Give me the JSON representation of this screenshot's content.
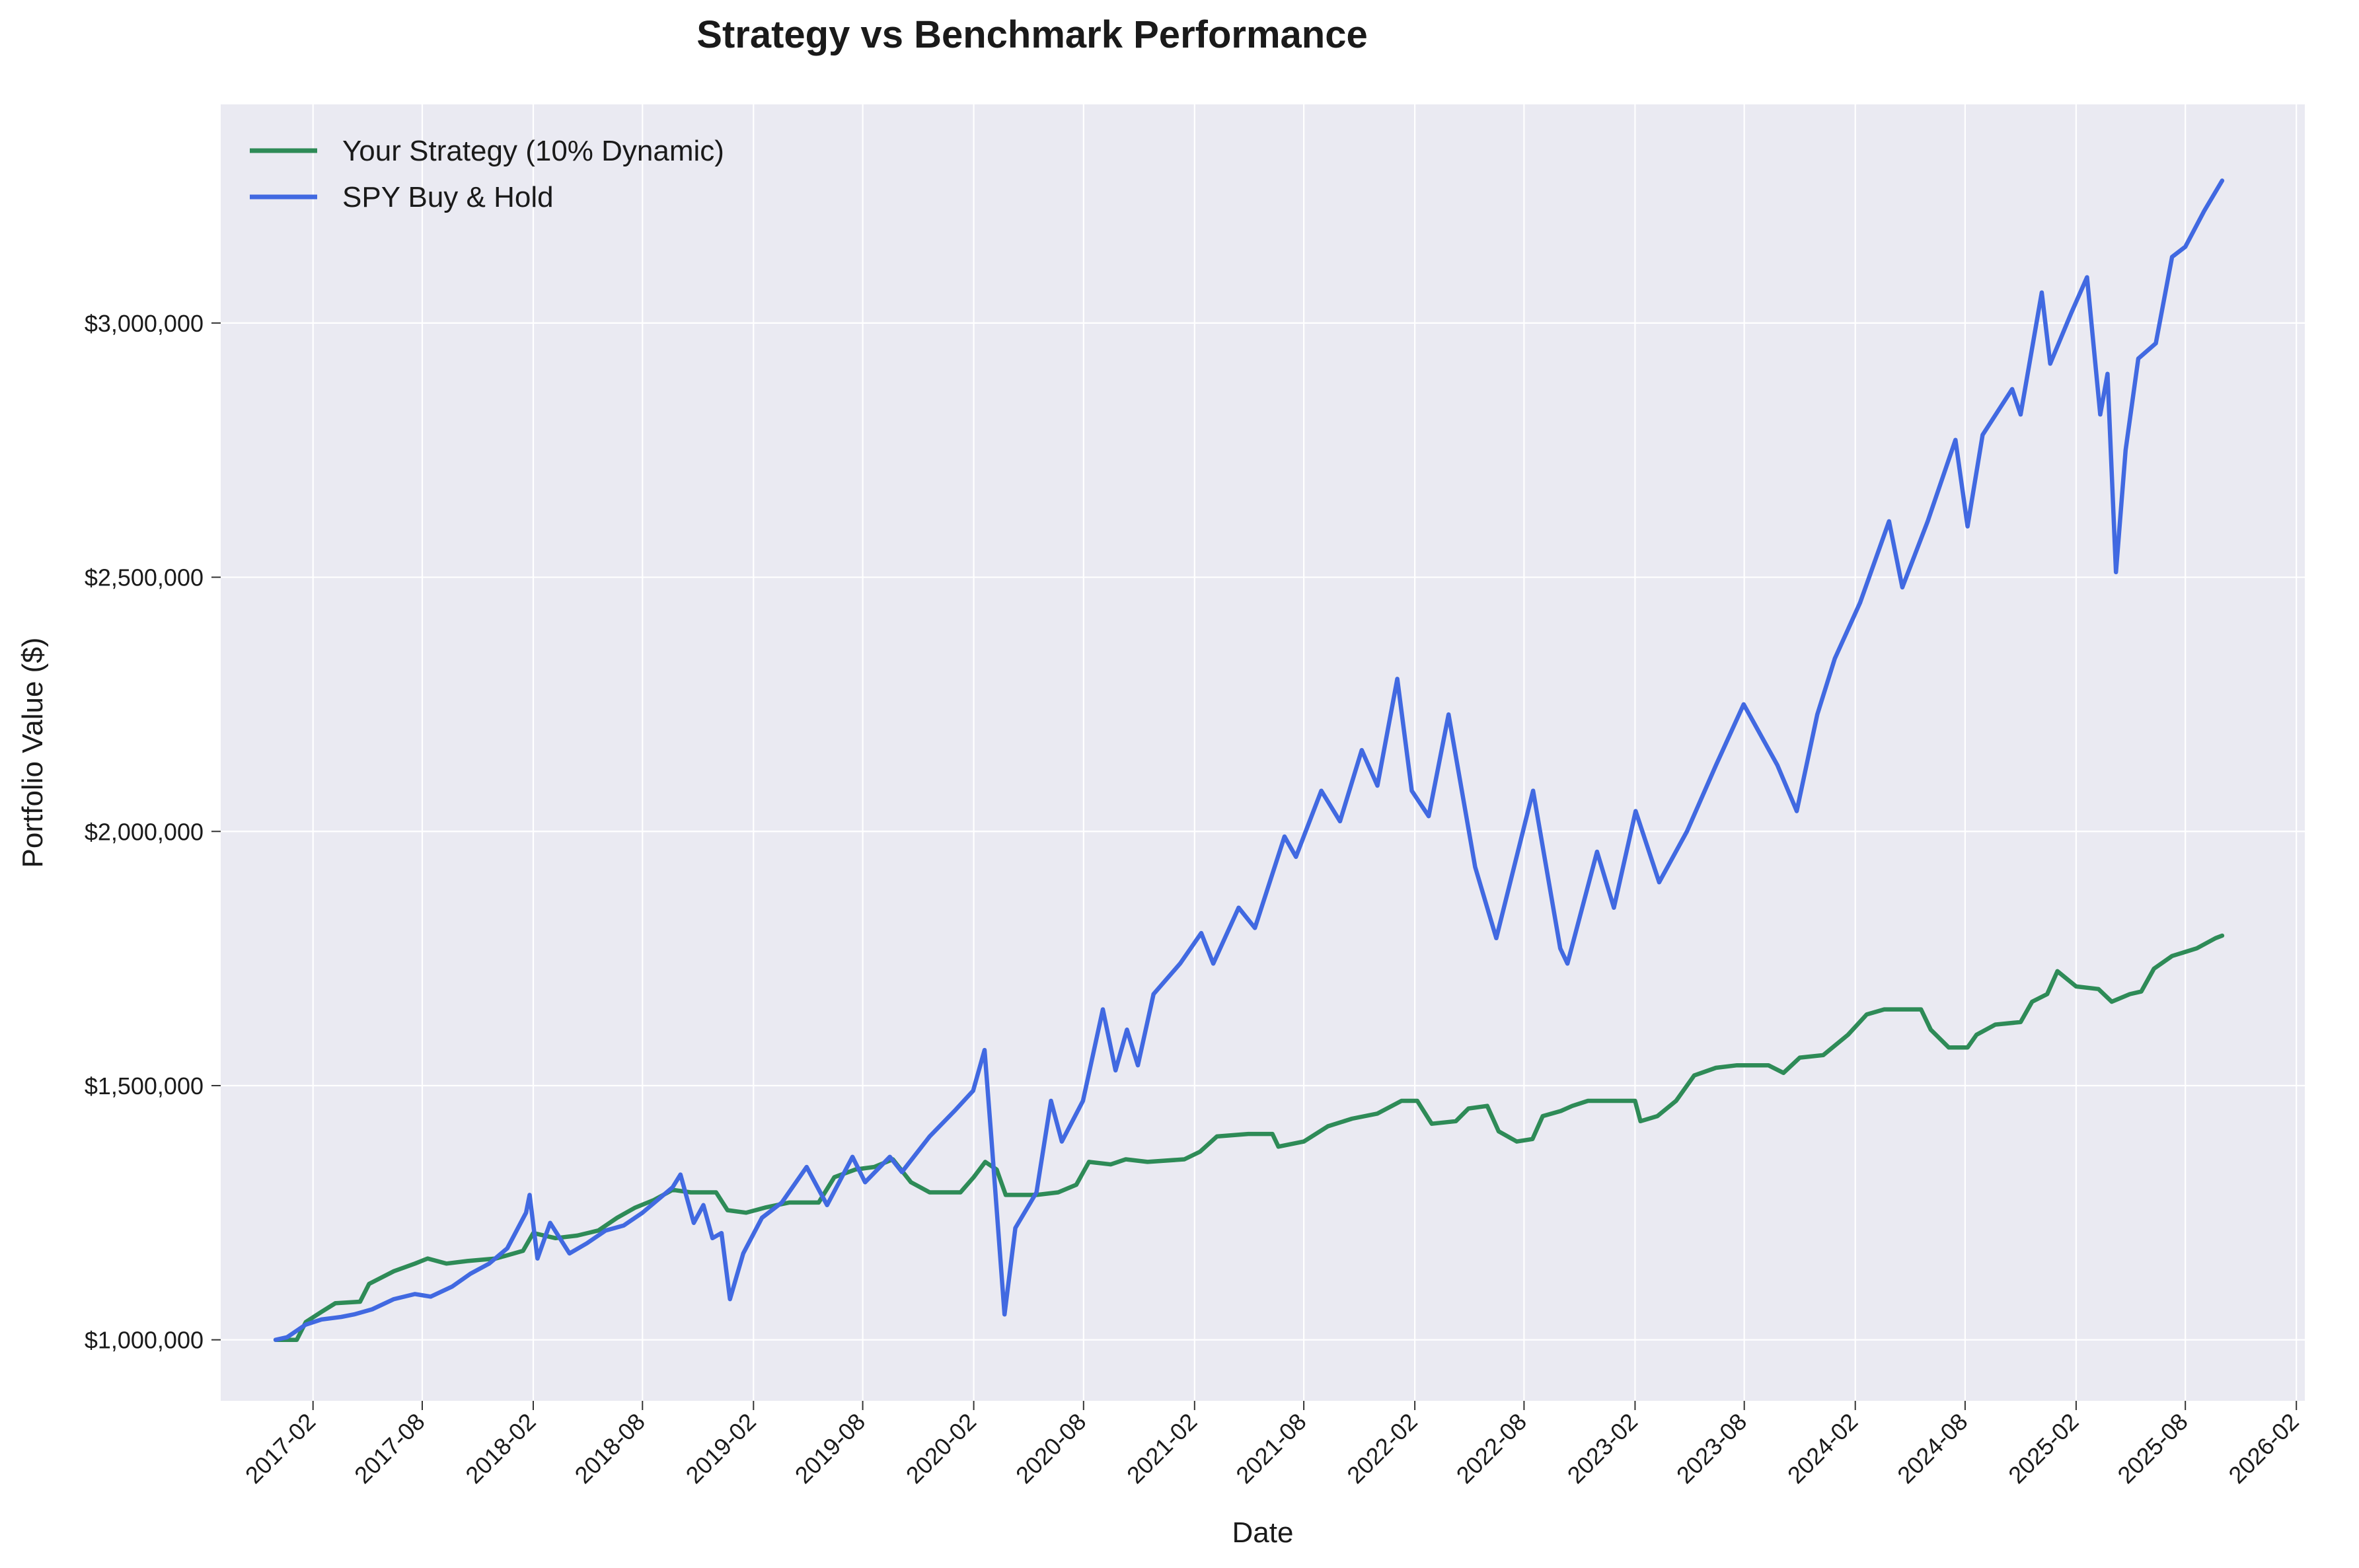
{
  "chart_data": {
    "type": "line",
    "title": "Strategy vs Benchmark Performance",
    "xlabel": "Date",
    "ylabel": "Portfolio Value ($)",
    "grid": true,
    "legend_placement": "top-left",
    "background_color": "#eaeaf2",
    "xlim": [
      "2016-09-01",
      "2026-02-15"
    ],
    "ylim": [
      880000,
      3430000
    ],
    "x_ticks": [
      "2017-02",
      "2017-08",
      "2018-02",
      "2018-08",
      "2019-02",
      "2019-08",
      "2020-02",
      "2020-08",
      "2021-02",
      "2021-08",
      "2022-02",
      "2022-08",
      "2023-02",
      "2023-08",
      "2024-02",
      "2024-08",
      "2025-02",
      "2025-08",
      "2026-02"
    ],
    "y_ticks": [
      1000000,
      1500000,
      2000000,
      2500000,
      3000000
    ],
    "y_tick_labels": [
      "$1,000,000",
      "$1,500,000",
      "$2,000,000",
      "$2,500,000",
      "$3,000,000"
    ],
    "series": [
      {
        "name": "Your Strategy (10% Dynamic)",
        "color": "#2e8b57",
        "points": [
          [
            "2016-12-01",
            1000000
          ],
          [
            "2017-01-05",
            1000000
          ],
          [
            "2017-01-20",
            1035000
          ],
          [
            "2017-02-15",
            1055000
          ],
          [
            "2017-03-10",
            1072000
          ],
          [
            "2017-04-20",
            1075000
          ],
          [
            "2017-05-05",
            1110000
          ],
          [
            "2017-06-15",
            1135000
          ],
          [
            "2017-07-20",
            1150000
          ],
          [
            "2017-08-10",
            1160000
          ],
          [
            "2017-09-10",
            1150000
          ],
          [
            "2017-10-15",
            1155000
          ],
          [
            "2017-12-01",
            1160000
          ],
          [
            "2018-01-15",
            1175000
          ],
          [
            "2018-02-01",
            1210000
          ],
          [
            "2018-03-10",
            1200000
          ],
          [
            "2018-04-15",
            1205000
          ],
          [
            "2018-05-20",
            1215000
          ],
          [
            "2018-06-20",
            1240000
          ],
          [
            "2018-07-20",
            1260000
          ],
          [
            "2018-08-20",
            1275000
          ],
          [
            "2018-09-20",
            1295000
          ],
          [
            "2018-10-20",
            1290000
          ],
          [
            "2018-12-01",
            1290000
          ],
          [
            "2018-12-20",
            1255000
          ],
          [
            "2019-01-20",
            1250000
          ],
          [
            "2019-02-20",
            1260000
          ],
          [
            "2019-04-01",
            1270000
          ],
          [
            "2019-05-20",
            1270000
          ],
          [
            "2019-06-15",
            1320000
          ],
          [
            "2019-07-20",
            1335000
          ],
          [
            "2019-08-20",
            1340000
          ],
          [
            "2019-09-20",
            1355000
          ],
          [
            "2019-10-20",
            1310000
          ],
          [
            "2019-11-20",
            1290000
          ],
          [
            "2020-01-10",
            1290000
          ],
          [
            "2020-02-01",
            1320000
          ],
          [
            "2020-02-20",
            1350000
          ],
          [
            "2020-03-10",
            1335000
          ],
          [
            "2020-03-25",
            1285000
          ],
          [
            "2020-05-15",
            1285000
          ],
          [
            "2020-06-20",
            1290000
          ],
          [
            "2020-07-20",
            1305000
          ],
          [
            "2020-08-10",
            1350000
          ],
          [
            "2020-09-15",
            1345000
          ],
          [
            "2020-10-10",
            1355000
          ],
          [
            "2020-11-15",
            1350000
          ],
          [
            "2021-01-15",
            1355000
          ],
          [
            "2021-02-10",
            1370000
          ],
          [
            "2021-03-10",
            1400000
          ],
          [
            "2021-05-01",
            1405000
          ],
          [
            "2021-06-10",
            1405000
          ],
          [
            "2021-06-20",
            1380000
          ],
          [
            "2021-08-01",
            1390000
          ],
          [
            "2021-09-10",
            1420000
          ],
          [
            "2021-10-20",
            1435000
          ],
          [
            "2021-12-01",
            1445000
          ],
          [
            "2022-01-10",
            1470000
          ],
          [
            "2022-02-05",
            1470000
          ],
          [
            "2022-03-01",
            1425000
          ],
          [
            "2022-04-10",
            1430000
          ],
          [
            "2022-05-01",
            1455000
          ],
          [
            "2022-06-01",
            1460000
          ],
          [
            "2022-06-20",
            1410000
          ],
          [
            "2022-07-20",
            1390000
          ],
          [
            "2022-08-15",
            1395000
          ],
          [
            "2022-09-01",
            1440000
          ],
          [
            "2022-10-01",
            1450000
          ],
          [
            "2022-10-20",
            1460000
          ],
          [
            "2022-11-15",
            1470000
          ],
          [
            "2023-02-01",
            1470000
          ],
          [
            "2023-02-10",
            1430000
          ],
          [
            "2023-03-10",
            1440000
          ],
          [
            "2023-04-10",
            1470000
          ],
          [
            "2023-05-10",
            1520000
          ],
          [
            "2023-06-15",
            1535000
          ],
          [
            "2023-07-20",
            1540000
          ],
          [
            "2023-09-10",
            1540000
          ],
          [
            "2023-10-05",
            1525000
          ],
          [
            "2023-11-01",
            1555000
          ],
          [
            "2023-12-10",
            1560000
          ],
          [
            "2024-01-20",
            1600000
          ],
          [
            "2024-02-20",
            1640000
          ],
          [
            "2024-03-20",
            1650000
          ],
          [
            "2024-05-20",
            1650000
          ],
          [
            "2024-06-05",
            1610000
          ],
          [
            "2024-07-05",
            1575000
          ],
          [
            "2024-08-05",
            1575000
          ],
          [
            "2024-08-20",
            1600000
          ],
          [
            "2024-09-20",
            1620000
          ],
          [
            "2024-11-01",
            1625000
          ],
          [
            "2024-11-20",
            1665000
          ],
          [
            "2024-12-15",
            1680000
          ],
          [
            "2025-01-01",
            1725000
          ],
          [
            "2025-02-01",
            1695000
          ],
          [
            "2025-03-10",
            1690000
          ],
          [
            "2025-04-01",
            1665000
          ],
          [
            "2025-05-01",
            1680000
          ],
          [
            "2025-05-20",
            1685000
          ],
          [
            "2025-06-10",
            1730000
          ],
          [
            "2025-07-10",
            1755000
          ],
          [
            "2025-08-20",
            1770000
          ],
          [
            "2025-09-20",
            1790000
          ],
          [
            "2025-10-01",
            1795000
          ]
        ]
      },
      {
        "name": "SPY Buy & Hold",
        "color": "#4169e1",
        "points": [
          [
            "2016-12-01",
            1000000
          ],
          [
            "2016-12-20",
            1005000
          ],
          [
            "2017-01-20",
            1030000
          ],
          [
            "2017-02-15",
            1040000
          ],
          [
            "2017-03-20",
            1045000
          ],
          [
            "2017-04-10",
            1050000
          ],
          [
            "2017-05-10",
            1060000
          ],
          [
            "2017-06-15",
            1080000
          ],
          [
            "2017-07-20",
            1090000
          ],
          [
            "2017-08-15",
            1085000
          ],
          [
            "2017-09-20",
            1105000
          ],
          [
            "2017-10-20",
            1130000
          ],
          [
            "2017-11-20",
            1150000
          ],
          [
            "2017-12-20",
            1180000
          ],
          [
            "2018-01-20",
            1250000
          ],
          [
            "2018-01-26",
            1285000
          ],
          [
            "2018-02-08",
            1160000
          ],
          [
            "2018-03-01",
            1230000
          ],
          [
            "2018-04-02",
            1170000
          ],
          [
            "2018-05-01",
            1190000
          ],
          [
            "2018-06-01",
            1215000
          ],
          [
            "2018-07-01",
            1225000
          ],
          [
            "2018-08-01",
            1250000
          ],
          [
            "2018-09-20",
            1300000
          ],
          [
            "2018-10-03",
            1325000
          ],
          [
            "2018-10-25",
            1230000
          ],
          [
            "2018-11-10",
            1265000
          ],
          [
            "2018-11-25",
            1200000
          ],
          [
            "2018-12-10",
            1210000
          ],
          [
            "2018-12-24",
            1080000
          ],
          [
            "2019-01-15",
            1170000
          ],
          [
            "2019-02-15",
            1240000
          ],
          [
            "2019-03-20",
            1270000
          ],
          [
            "2019-04-30",
            1340000
          ],
          [
            "2019-06-03",
            1265000
          ],
          [
            "2019-07-15",
            1360000
          ],
          [
            "2019-08-05",
            1310000
          ],
          [
            "2019-09-15",
            1360000
          ],
          [
            "2019-10-05",
            1330000
          ],
          [
            "2019-11-20",
            1400000
          ],
          [
            "2019-12-31",
            1450000
          ],
          [
            "2020-01-31",
            1490000
          ],
          [
            "2020-02-19",
            1570000
          ],
          [
            "2020-03-01",
            1400000
          ],
          [
            "2020-03-23",
            1050000
          ],
          [
            "2020-04-10",
            1220000
          ],
          [
            "2020-05-15",
            1290000
          ],
          [
            "2020-06-08",
            1470000
          ],
          [
            "2020-06-26",
            1390000
          ],
          [
            "2020-07-31",
            1470000
          ],
          [
            "2020-09-02",
            1650000
          ],
          [
            "2020-09-23",
            1530000
          ],
          [
            "2020-10-12",
            1610000
          ],
          [
            "2020-10-30",
            1540000
          ],
          [
            "2020-11-25",
            1680000
          ],
          [
            "2021-01-08",
            1740000
          ],
          [
            "2021-02-12",
            1800000
          ],
          [
            "2021-03-04",
            1740000
          ],
          [
            "2021-04-15",
            1850000
          ],
          [
            "2021-05-12",
            1810000
          ],
          [
            "2021-06-30",
            1990000
          ],
          [
            "2021-07-19",
            1950000
          ],
          [
            "2021-08-30",
            2080000
          ],
          [
            "2021-09-30",
            2020000
          ],
          [
            "2021-11-05",
            2160000
          ],
          [
            "2021-12-01",
            2090000
          ],
          [
            "2022-01-03",
            2300000
          ],
          [
            "2022-01-27",
            2080000
          ],
          [
            "2022-02-24",
            2030000
          ],
          [
            "2022-03-29",
            2230000
          ],
          [
            "2022-05-12",
            1930000
          ],
          [
            "2022-06-16",
            1790000
          ],
          [
            "2022-08-16",
            2080000
          ],
          [
            "2022-09-30",
            1770000
          ],
          [
            "2022-10-12",
            1740000
          ],
          [
            "2022-11-30",
            1960000
          ],
          [
            "2022-12-28",
            1850000
          ],
          [
            "2023-02-02",
            2040000
          ],
          [
            "2023-03-13",
            1900000
          ],
          [
            "2023-04-28",
            2000000
          ],
          [
            "2023-06-15",
            2130000
          ],
          [
            "2023-07-31",
            2250000
          ],
          [
            "2023-09-25",
            2130000
          ],
          [
            "2023-10-27",
            2040000
          ],
          [
            "2023-11-30",
            2230000
          ],
          [
            "2023-12-29",
            2340000
          ],
          [
            "2024-02-09",
            2450000
          ],
          [
            "2024-03-28",
            2610000
          ],
          [
            "2024-04-19",
            2480000
          ],
          [
            "2024-05-31",
            2610000
          ],
          [
            "2024-07-16",
            2770000
          ],
          [
            "2024-08-05",
            2600000
          ],
          [
            "2024-08-30",
            2780000
          ],
          [
            "2024-10-18",
            2870000
          ],
          [
            "2024-11-01",
            2820000
          ],
          [
            "2024-12-06",
            3060000
          ],
          [
            "2024-12-20",
            2920000
          ],
          [
            "2025-01-24",
            3020000
          ],
          [
            "2025-02-19",
            3090000
          ],
          [
            "2025-03-13",
            2820000
          ],
          [
            "2025-03-25",
            2900000
          ],
          [
            "2025-04-08",
            2510000
          ],
          [
            "2025-04-24",
            2750000
          ],
          [
            "2025-05-15",
            2930000
          ],
          [
            "2025-06-13",
            2960000
          ],
          [
            "2025-07-10",
            3130000
          ],
          [
            "2025-08-01",
            3150000
          ],
          [
            "2025-09-01",
            3220000
          ],
          [
            "2025-10-01",
            3280000
          ]
        ]
      }
    ]
  }
}
